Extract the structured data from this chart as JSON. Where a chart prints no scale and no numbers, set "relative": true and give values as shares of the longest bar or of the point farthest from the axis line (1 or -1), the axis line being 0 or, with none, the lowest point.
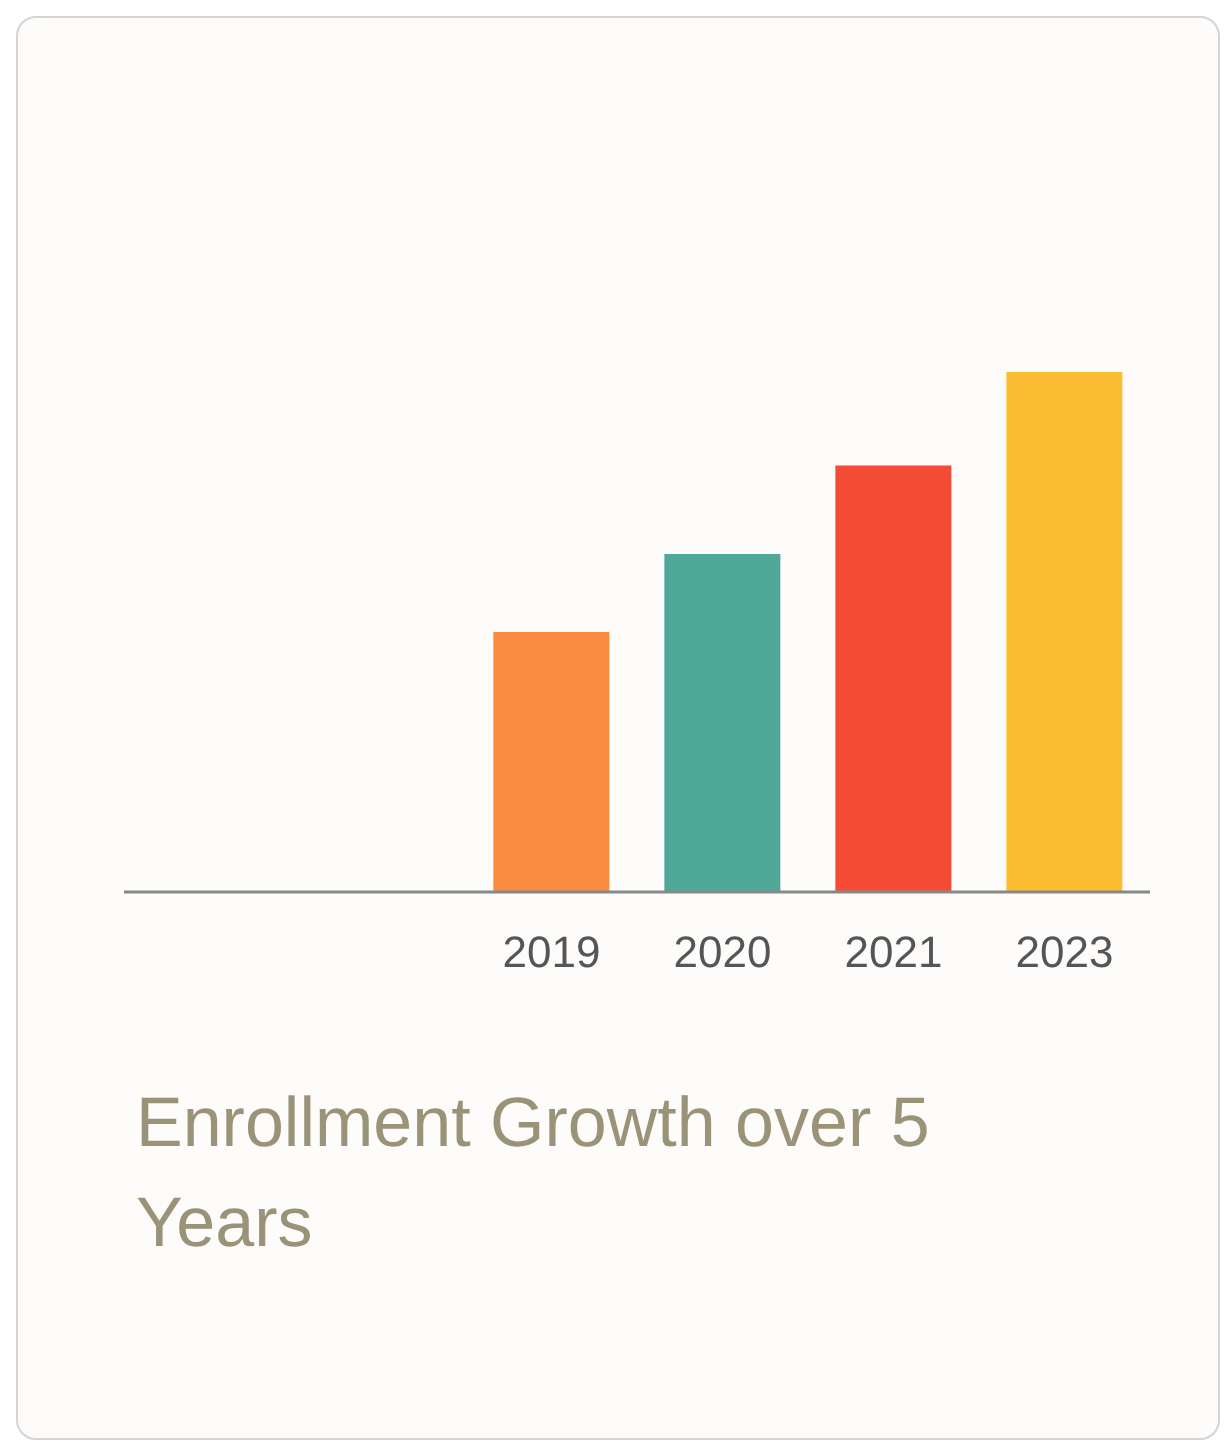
{
  "chart_data": {
    "type": "bar",
    "title": "Enrollment Growth over 5 Years",
    "relative": true,
    "categories": [
      null,
      null,
      "2019",
      "2020",
      "2021",
      "2023"
    ],
    "values": [
      null,
      null,
      0.5,
      0.65,
      0.82,
      1
    ],
    "colors": [
      "#f98c40",
      "#f98c40",
      "#f98c40",
      "#4fa898",
      "#f44b35",
      "#fbbe33"
    ],
    "grid": false,
    "legend": false
  }
}
